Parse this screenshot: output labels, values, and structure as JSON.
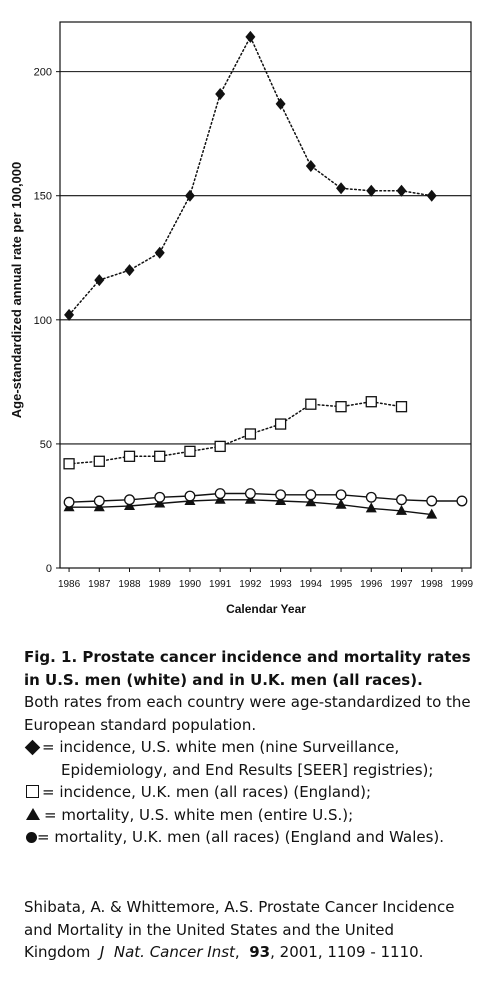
{
  "chart_data": {
    "type": "line",
    "xlabel": "Calendar Year",
    "ylabel": "Age-standardized annual rate per 100,000",
    "x": [
      1986,
      1987,
      1988,
      1989,
      1990,
      1991,
      1992,
      1993,
      1994,
      1995,
      1996,
      1997,
      1998,
      1999
    ],
    "xticks": [
      "1986",
      "1987",
      "1988",
      "1989",
      "1990",
      "1991",
      "1992",
      "1993",
      "1994",
      "1995",
      "1996",
      "1997",
      "1998",
      "1999"
    ],
    "yticks": [
      "0",
      "50",
      "100",
      "150",
      "200"
    ],
    "ylim": [
      0,
      220
    ],
    "grid": "horizontal at 50, 100, 150, 200",
    "series": [
      {
        "marker": "diamond",
        "line": "dotted",
        "x": [
          1986,
          1987,
          1988,
          1989,
          1990,
          1991,
          1992,
          1993,
          1994,
          1995,
          1996,
          1997,
          1998
        ],
        "values": [
          102,
          116,
          120,
          127,
          150,
          191,
          214,
          187,
          162,
          153,
          152,
          152,
          150
        ]
      },
      {
        "marker": "open-square",
        "line": "dotted",
        "x": [
          1986,
          1987,
          1988,
          1989,
          1990,
          1991,
          1992,
          1993,
          1994,
          1995,
          1996,
          1997
        ],
        "values": [
          42,
          43,
          45,
          45,
          47,
          49,
          54,
          58,
          66,
          65,
          67,
          65
        ]
      },
      {
        "marker": "filled-triangle",
        "line": "solid",
        "x": [
          1986,
          1987,
          1988,
          1989,
          1990,
          1991,
          1992,
          1993,
          1994,
          1995,
          1996,
          1997,
          1998
        ],
        "values": [
          24.5,
          24.5,
          25,
          26,
          27,
          27.5,
          27.5,
          27,
          26.5,
          25.5,
          24,
          23,
          21.5
        ]
      },
      {
        "marker": "open-circle",
        "line": "solid",
        "x": [
          1986,
          1987,
          1988,
          1989,
          1990,
          1991,
          1992,
          1993,
          1994,
          1995,
          1996,
          1997,
          1998,
          1999
        ],
        "values": [
          26.5,
          27,
          27.5,
          28.5,
          29,
          30,
          30,
          29.5,
          29.5,
          29.5,
          28.5,
          27.5,
          27,
          27
        ]
      }
    ]
  },
  "caption": {
    "title": "Fig. 1. Prostate cancer incidence and mortality rates in U.S. men (white) and in U.K. men (all races).",
    "body": "Both rates from each country were age-standardized to the European standard population.",
    "legend": [
      {
        "symbol": "diamond",
        "text": "= incidence, U.S. white men (nine Surveillance,",
        "cont": "Epidemiology, and End Results [SEER] registries);"
      },
      {
        "symbol": "square",
        "text": "= incidence, U.K. men (all races) (England);"
      },
      {
        "symbol": "triangle",
        "text": "= mortality, U.S. white men (entire U.S.);"
      },
      {
        "symbol": "circle",
        "text": "= mortality, U.K. men (all races) (England and Wales)."
      }
    ]
  },
  "citation": {
    "authors": "Shibata, A. & Whittemore, A.S. Prostate Cancer Incidence and Mortality in the United States and the United Kingdom",
    "journal_j": "J",
    "journal_rest": "Nat. Cancer Inst",
    "comma1": ",",
    "volume": "93",
    "rest": ", 2001, 1109 - 1110."
  }
}
